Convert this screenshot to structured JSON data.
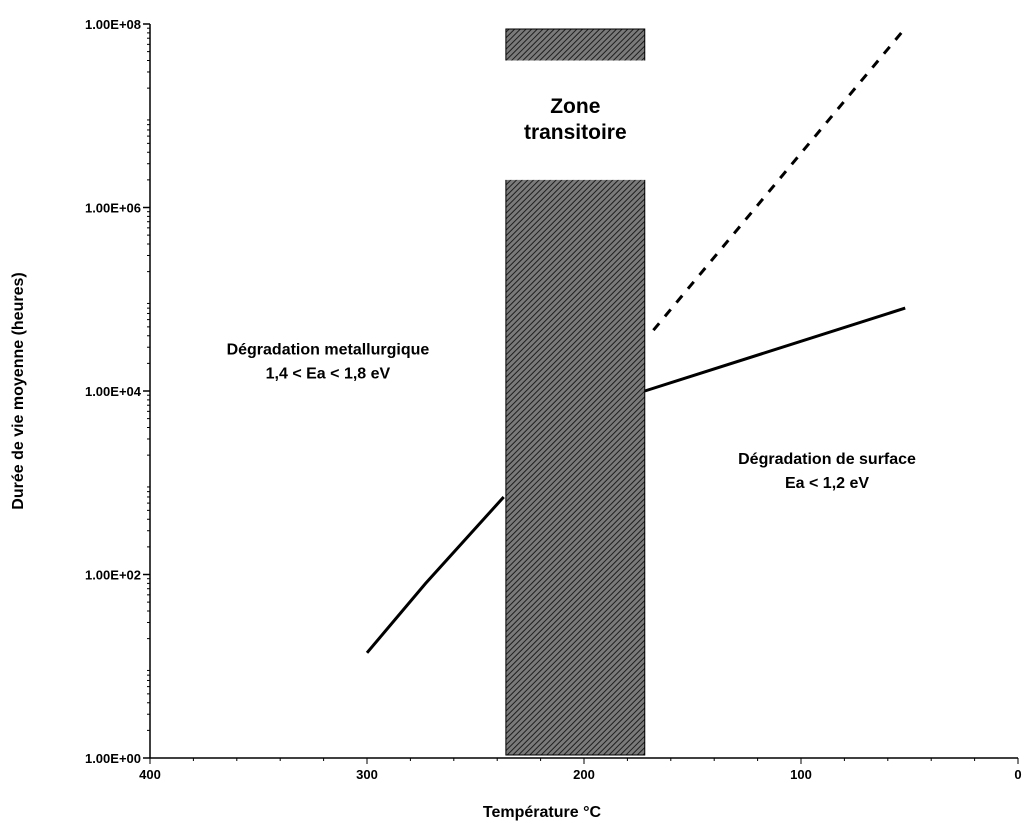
{
  "chart_data": {
    "type": "line",
    "title": "",
    "xlabel": "Température °C",
    "ylabel": "Durée de vie moyenne (heures)",
    "x_reversed": true,
    "xlim": [
      400,
      0
    ],
    "ylim": [
      1,
      100000000
    ],
    "y_scale": "log",
    "grid": false,
    "x_ticks": [
      {
        "value": 400,
        "label": "400"
      },
      {
        "value": 300,
        "label": "300"
      },
      {
        "value": 200,
        "label": "200"
      },
      {
        "value": 100,
        "label": "100"
      },
      {
        "value": 0,
        "label": "0"
      }
    ],
    "y_ticks": [
      {
        "value": 1,
        "label": "1.00E+00"
      },
      {
        "value": 100,
        "label": "1.00E+02"
      },
      {
        "value": 10000,
        "label": "1.00E+04"
      },
      {
        "value": 1000000,
        "label": "1.00E+06"
      },
      {
        "value": 100000000,
        "label": "1.00E+08"
      }
    ],
    "series": [
      {
        "style": "solid",
        "color": "#000000",
        "points": [
          [
            300,
            14
          ],
          [
            273,
            80
          ],
          [
            237,
            700
          ]
        ]
      },
      {
        "style": "solid",
        "color": "#000000",
        "points": [
          [
            172,
            10000
          ],
          [
            52,
            80000
          ]
        ]
      },
      {
        "style": "dashed",
        "color": "#000000",
        "points": [
          [
            168,
            46000
          ],
          [
            52,
            90000000
          ]
        ]
      }
    ],
    "shaded_band": {
      "x_from": 236,
      "x_to": 172,
      "fill": "#555555",
      "label_lines": [
        "Zone",
        "transitoire"
      ],
      "label_y_top": 40000000,
      "label_y_bottom": 2000000
    },
    "annotations": [
      {
        "lines": [
          "Dégradation metallurgique",
          "1,4 < Ea < 1,8 eV"
        ],
        "x": 318,
        "y": 25000
      },
      {
        "lines": [
          "Dégradation de surface",
          "Ea < 1,2 eV"
        ],
        "x": 88,
        "y": 1600
      }
    ]
  }
}
